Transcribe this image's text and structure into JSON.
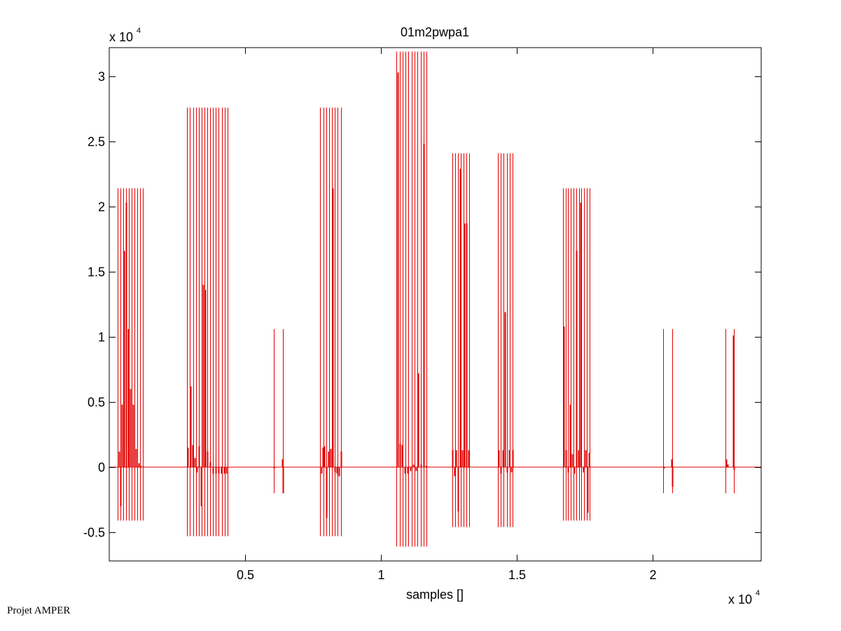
{
  "credit": "Projet AMPER",
  "colors": {
    "signal": "#e00000",
    "axes": "#000000",
    "background": "#ffffff"
  },
  "chart_data": {
    "type": "line",
    "title": "01m2pwpa1",
    "xlabel": "samples []",
    "ylabel": "",
    "x_exponent_label": "x 10",
    "x_exponent_power": "4",
    "y_exponent_label": "x 10",
    "y_exponent_power": "4",
    "xlim": [
      0,
      2400
    ],
    "ylim": [
      -0.72,
      3.22
    ],
    "x_scale_note": "axis values in units of 10^4 samples are shown as tick labels",
    "xticks": [
      500,
      1000,
      1500,
      2000
    ],
    "xtick_labels": [
      "0.5",
      "1",
      "1.5",
      "2"
    ],
    "yticks": [
      -0.5,
      0,
      0.5,
      1,
      1.5,
      2,
      2.5,
      3
    ],
    "ytick_labels": [
      "-0.5",
      "0",
      "0.5",
      "1",
      "1.5",
      "2",
      "2.5",
      "3"
    ],
    "grid": false,
    "legend": "none",
    "baseline": 0,
    "bursts": [
      {
        "x_start": 32,
        "x_end": 124,
        "lines": 10,
        "top": 2.14,
        "bottom": -0.41,
        "spikes": [
          [
            36,
            0.12
          ],
          [
            40,
            -0.3
          ],
          [
            46,
            0.48
          ],
          [
            54,
            1.66
          ],
          [
            62,
            2.03
          ],
          [
            70,
            1.06
          ],
          [
            78,
            0.6
          ],
          [
            88,
            0.48
          ],
          [
            98,
            0.14
          ],
          [
            108,
            0.03
          ],
          [
            116,
            0.01
          ]
        ]
      },
      {
        "x_start": 287,
        "x_end": 435,
        "lines": 15,
        "top": 2.76,
        "bottom": -0.53,
        "spikes": [
          [
            290,
            0.15
          ],
          [
            298,
            0.62
          ],
          [
            306,
            0.17
          ],
          [
            314,
            0.07
          ],
          [
            322,
            -0.04
          ],
          [
            330,
            0.16
          ],
          [
            338,
            -0.3
          ],
          [
            346,
            1.4
          ],
          [
            354,
            1.36
          ],
          [
            362,
            0.12
          ],
          [
            372,
            0.04
          ],
          [
            382,
            -0.05
          ],
          [
            392,
            -0.05
          ],
          [
            402,
            -0.05
          ],
          [
            412,
            -0.05
          ],
          [
            422,
            -0.05
          ],
          [
            430,
            -0.05
          ]
        ]
      },
      {
        "x_start": 606,
        "x_end": 640,
        "lines": 2,
        "top": 1.06,
        "bottom": -0.2,
        "spikes": [
          [
            606,
            -0.01
          ],
          [
            638,
            0.06
          ],
          [
            640,
            -0.2
          ]
        ]
      },
      {
        "x_start": 777,
        "x_end": 852,
        "lines": 8,
        "top": 2.76,
        "bottom": -0.53,
        "spikes": [
          [
            780,
            -0.05
          ],
          [
            786,
            0.15
          ],
          [
            792,
            0.16
          ],
          [
            798,
            -0.39
          ],
          [
            806,
            0.12
          ],
          [
            814,
            0.14
          ],
          [
            822,
            2.14
          ],
          [
            830,
            -0.04
          ],
          [
            838,
            -0.05
          ],
          [
            846,
            -0.07
          ],
          [
            852,
            0.12
          ]
        ]
      },
      {
        "x_start": 1058,
        "x_end": 1168,
        "lines": 11,
        "top": 3.19,
        "bottom": -0.61,
        "spikes": [
          [
            1062,
            3.03
          ],
          [
            1070,
            0.18
          ],
          [
            1078,
            0.17
          ],
          [
            1088,
            -0.05
          ],
          [
            1098,
            -0.05
          ],
          [
            1108,
            -0.03
          ],
          [
            1118,
            0.02
          ],
          [
            1128,
            -0.03
          ],
          [
            1138,
            0.72
          ],
          [
            1148,
            0.02
          ],
          [
            1158,
            2.48
          ],
          [
            1166,
            0.01
          ]
        ]
      },
      {
        "x_start": 1262,
        "x_end": 1325,
        "lines": 7,
        "top": 2.41,
        "bottom": -0.46,
        "spikes": [
          [
            1264,
            0.13
          ],
          [
            1270,
            -0.07
          ],
          [
            1276,
            0.13
          ],
          [
            1284,
            -0.34
          ],
          [
            1292,
            2.29
          ],
          [
            1300,
            0.13
          ],
          [
            1308,
            1.87
          ],
          [
            1316,
            1.87
          ],
          [
            1322,
            0.13
          ]
        ]
      },
      {
        "x_start": 1430,
        "x_end": 1486,
        "lines": 6,
        "top": 2.41,
        "bottom": -0.46,
        "spikes": [
          [
            1434,
            0.13
          ],
          [
            1440,
            -0.05
          ],
          [
            1448,
            0.13
          ],
          [
            1456,
            1.19
          ],
          [
            1464,
            -0.04
          ],
          [
            1472,
            0.13
          ],
          [
            1480,
            -0.04
          ],
          [
            1486,
            0.13
          ]
        ]
      },
      {
        "x_start": 1670,
        "x_end": 1768,
        "lines": 11,
        "top": 2.14,
        "bottom": -0.41,
        "spikes": [
          [
            1672,
            1.08
          ],
          [
            1680,
            0.13
          ],
          [
            1688,
            -0.04
          ],
          [
            1696,
            0.48
          ],
          [
            1704,
            0.1
          ],
          [
            1712,
            -0.05
          ],
          [
            1720,
            1.66
          ],
          [
            1728,
            0.13
          ],
          [
            1736,
            2.03
          ],
          [
            1744,
            -0.04
          ],
          [
            1752,
            0.13
          ],
          [
            1760,
            -0.35
          ],
          [
            1766,
            0.11
          ]
        ]
      },
      {
        "x_start": 2040,
        "x_end": 2072,
        "lines": 2,
        "top": 1.06,
        "bottom": -0.2,
        "spikes": [
          [
            2042,
            -0.01
          ],
          [
            2070,
            0.06
          ],
          [
            2072,
            -0.15
          ]
        ]
      },
      {
        "x_start": 2268,
        "x_end": 2300,
        "lines": 2,
        "top": 1.06,
        "bottom": -0.2,
        "spikes": [
          [
            2270,
            0.06
          ],
          [
            2276,
            0.02
          ],
          [
            2298,
            1.01
          ],
          [
            2300,
            -0.02
          ]
        ]
      }
    ]
  }
}
